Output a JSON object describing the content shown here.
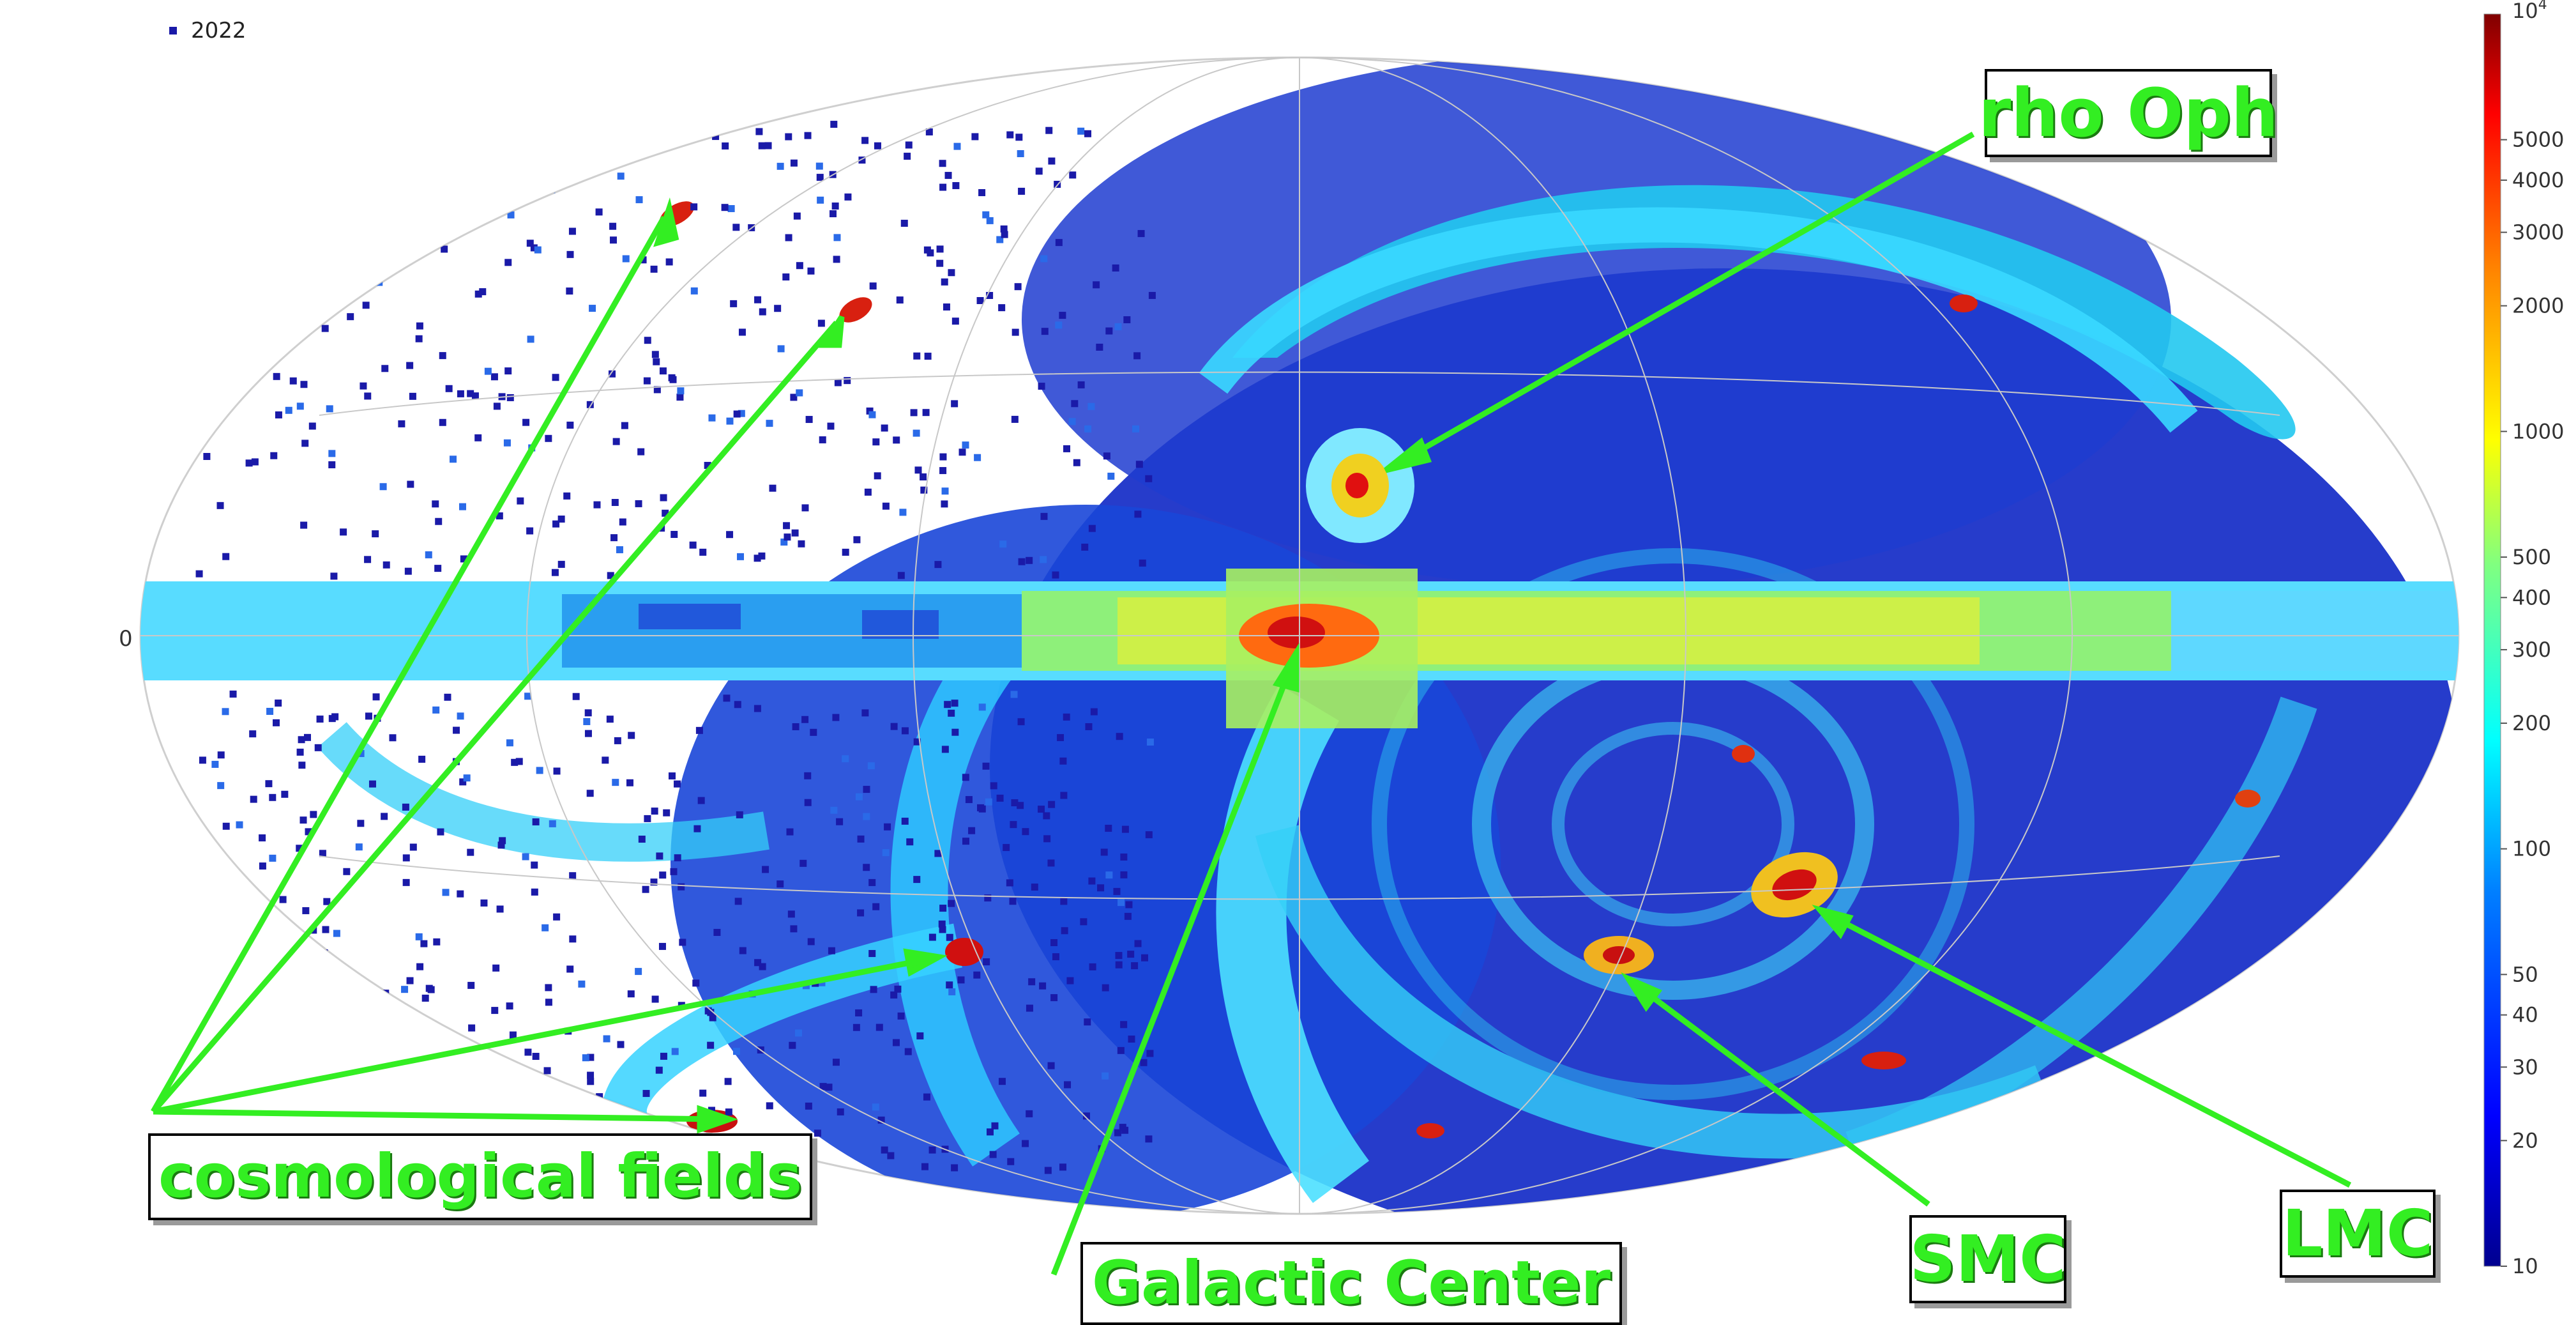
{
  "chart_data": {
    "type": "heatmap",
    "projection": "mollweide",
    "legend": {
      "entries": [
        "2022"
      ],
      "placement": "top-left"
    },
    "y_tick_labels": [
      "0"
    ],
    "colorbar": {
      "scale": "log",
      "range": [
        10,
        10000
      ],
      "ticks": [
        "10",
        "20",
        "30",
        "40",
        "50",
        "100",
        "200",
        "300",
        "400",
        "500",
        "1000",
        "2000",
        "3000",
        "4000",
        "5000"
      ],
      "top_label": "10",
      "top_label_exp": "4",
      "colormap": [
        "#00008f",
        "#0000ff",
        "#0080ff",
        "#00ffff",
        "#80ff80",
        "#ffff00",
        "#ff8000",
        "#ff0000",
        "#800000"
      ]
    },
    "annotations": [
      {
        "id": "rho-oph",
        "text": "rho Oph"
      },
      {
        "id": "cosmological-fields",
        "text": "cosmological fields"
      },
      {
        "id": "galactic-center",
        "text": "Galactic Center"
      },
      {
        "id": "smc",
        "text": "SMC"
      },
      {
        "id": "lmc",
        "text": "LMC"
      }
    ],
    "colors": {
      "annotation_text": "#33ee22",
      "arrow": "#33ee22",
      "marker": "#1a1aa8"
    }
  }
}
